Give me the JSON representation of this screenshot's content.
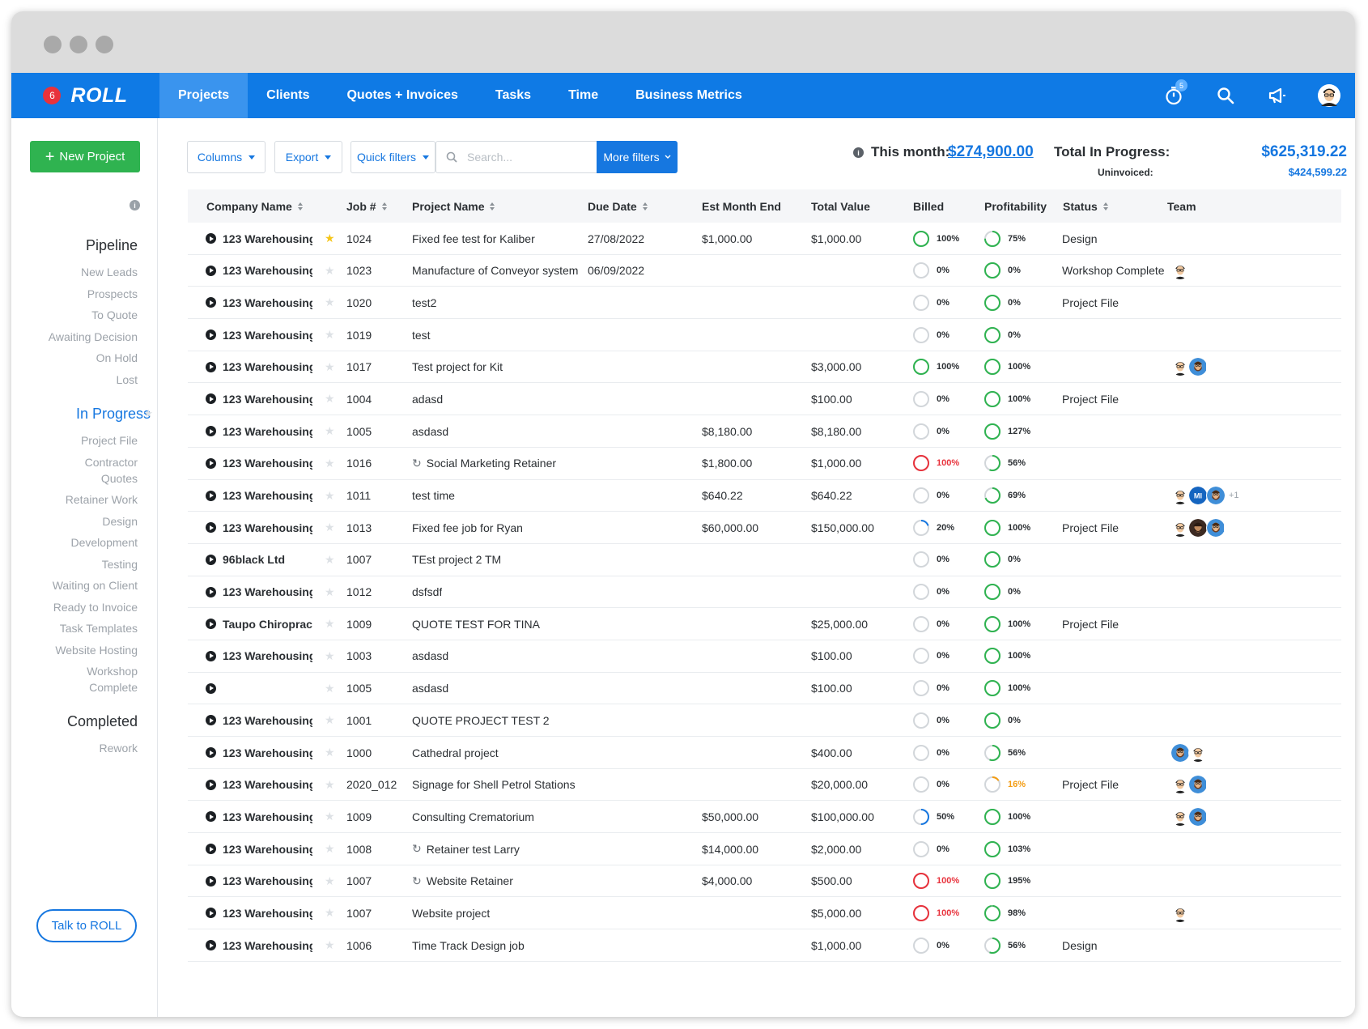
{
  "app": {
    "notification_count": "6",
    "logo_text": "ROLL",
    "timer_badge": "5"
  },
  "nav": {
    "tabs": [
      {
        "label": "Projects",
        "active": true
      },
      {
        "label": "Clients",
        "active": false
      },
      {
        "label": "Quotes + Invoices",
        "active": false
      },
      {
        "label": "Tasks",
        "active": false
      },
      {
        "label": "Time",
        "active": false
      },
      {
        "label": "Business Metrics",
        "active": false
      }
    ],
    "icons": [
      "stopwatch-icon",
      "search-icon",
      "megaphone-icon",
      "user-avatar"
    ]
  },
  "sidebar": {
    "new_project_label": "New Project",
    "groups": [
      {
        "title": "Pipeline",
        "highlight": false,
        "items": [
          "New Leads",
          "Prospects",
          "To Quote",
          "Awaiting Decision",
          "On Hold",
          "Lost"
        ]
      },
      {
        "title": "In Progress",
        "highlight": true,
        "items": [
          "Project File",
          "Contractor Quotes",
          "Retainer Work",
          "Design",
          "Development",
          "Testing",
          "Waiting on Client",
          "Ready to Invoice",
          "Task Templates",
          "Website Hosting",
          "Workshop Complete"
        ]
      },
      {
        "title": "Completed",
        "highlight": false,
        "items": [
          "Rework"
        ]
      }
    ],
    "talk_label": "Talk to ROLL"
  },
  "toolbar": {
    "columns_label": "Columns",
    "export_label": "Export",
    "quick_filters_label": "Quick filters",
    "search_placeholder": "Search...",
    "more_filters_label": "More filters"
  },
  "summary": {
    "this_month_label": "This month:",
    "this_month_value": "$274,900.00",
    "total_label": "Total In Progress:",
    "total_value": "$625,319.22",
    "uninvoiced_label": "Uninvoiced:",
    "uninvoiced_value": "$424,599.22"
  },
  "table": {
    "headers": {
      "company": "Company Name",
      "job": "Job #",
      "project": "Project Name",
      "due": "Due Date",
      "est": "Est Month End",
      "total": "Total Value",
      "billed": "Billed",
      "profit": "Profitability",
      "status": "Status",
      "team": "Team"
    },
    "rows": [
      {
        "company": "123 Warehousing",
        "starred": true,
        "job": "1024",
        "project": "Fixed fee test for Kaliber",
        "recurring": false,
        "due": "27/08/2022",
        "est": "$1,000.00",
        "total": "$1,000.00",
        "billed": "100%",
        "billed_pct": 100,
        "billed_color": "#2fb350",
        "profit": "75%",
        "profit_pct": 75,
        "profit_color": "#2fb350",
        "status": "Design",
        "team": [],
        "team_extra": ""
      },
      {
        "company": "123 Warehousing",
        "starred": false,
        "job": "1023",
        "project": "Manufacture of Conveyor system",
        "recurring": false,
        "due": "06/09/2022",
        "est": "",
        "total": "",
        "billed": "0%",
        "billed_pct": 0,
        "billed_color": "#d2d6da",
        "profit": "0%",
        "profit_pct": 100,
        "profit_color": "#2fb350",
        "status": "Workshop Complete",
        "team": [
          "a"
        ],
        "team_extra": ""
      },
      {
        "company": "123 Warehousing",
        "starred": false,
        "job": "1020",
        "project": "test2",
        "recurring": false,
        "due": "",
        "est": "",
        "total": "",
        "billed": "0%",
        "billed_pct": 0,
        "billed_color": "#d2d6da",
        "profit": "0%",
        "profit_pct": 100,
        "profit_color": "#2fb350",
        "status": "Project File",
        "team": [],
        "team_extra": ""
      },
      {
        "company": "123 Warehousing",
        "starred": false,
        "job": "1019",
        "project": "test",
        "recurring": false,
        "due": "",
        "est": "",
        "total": "",
        "billed": "0%",
        "billed_pct": 0,
        "billed_color": "#d2d6da",
        "profit": "0%",
        "profit_pct": 100,
        "profit_color": "#2fb350",
        "status": "",
        "team": [],
        "team_extra": ""
      },
      {
        "company": "123 Warehousing",
        "starred": false,
        "job": "1017",
        "project": "Test project for Kit",
        "recurring": false,
        "due": "",
        "est": "",
        "total": "$3,000.00",
        "billed": "100%",
        "billed_pct": 100,
        "billed_color": "#2fb350",
        "profit": "100%",
        "profit_pct": 100,
        "profit_color": "#2fb350",
        "status": "",
        "team": [
          "a",
          "b"
        ],
        "team_extra": ""
      },
      {
        "company": "123 Warehousing",
        "starred": false,
        "job": "1004",
        "project": "adasd",
        "recurring": false,
        "due": "",
        "est": "",
        "total": "$100.00",
        "billed": "0%",
        "billed_pct": 0,
        "billed_color": "#d2d6da",
        "profit": "100%",
        "profit_pct": 100,
        "profit_color": "#2fb350",
        "status": "Project File",
        "team": [],
        "team_extra": ""
      },
      {
        "company": "123 Warehousing",
        "starred": false,
        "job": "1005",
        "project": "asdasd",
        "recurring": false,
        "due": "",
        "est": "$8,180.00",
        "total": "$8,180.00",
        "billed": "0%",
        "billed_pct": 0,
        "billed_color": "#d2d6da",
        "profit": "127%",
        "profit_pct": 100,
        "profit_color": "#2fb350",
        "status": "",
        "team": [],
        "team_extra": ""
      },
      {
        "company": "123 Warehousing",
        "starred": false,
        "job": "1016",
        "project": "Social Marketing Retainer",
        "recurring": true,
        "due": "",
        "est": "$1,800.00",
        "total": "$1,000.00",
        "billed": "100%",
        "billed_pct": 100,
        "billed_color": "#e8323c",
        "profit": "56%",
        "profit_pct": 56,
        "profit_color": "#2fb350",
        "status": "",
        "team": [],
        "team_extra": ""
      },
      {
        "company": "123 Warehousing",
        "starred": false,
        "job": "1011",
        "project": "test time",
        "recurring": false,
        "due": "",
        "est": "$640.22",
        "total": "$640.22",
        "billed": "0%",
        "billed_pct": 0,
        "billed_color": "#d2d6da",
        "profit": "69%",
        "profit_pct": 69,
        "profit_color": "#2fb350",
        "status": "",
        "team": [
          "a",
          "MI",
          "b"
        ],
        "team_extra": "+1"
      },
      {
        "company": "123 Warehousing",
        "starred": false,
        "job": "1013",
        "project": "Fixed fee job for Ryan",
        "recurring": false,
        "due": "",
        "est": "$60,000.00",
        "total": "$150,000.00",
        "billed": "20%",
        "billed_pct": 20,
        "billed_color": "#1677e0",
        "profit": "100%",
        "profit_pct": 100,
        "profit_color": "#2fb350",
        "status": "Project File",
        "team": [
          "a",
          "c",
          "b"
        ],
        "team_extra": ""
      },
      {
        "company": "96black Ltd",
        "starred": false,
        "job": "1007",
        "project": "TEst project 2 TM",
        "recurring": false,
        "due": "",
        "est": "",
        "total": "",
        "billed": "0%",
        "billed_pct": 0,
        "billed_color": "#d2d6da",
        "profit": "0%",
        "profit_pct": 100,
        "profit_color": "#2fb350",
        "status": "",
        "team": [],
        "team_extra": ""
      },
      {
        "company": "123 Warehousing",
        "starred": false,
        "job": "1012",
        "project": "dsfsdf",
        "recurring": false,
        "due": "",
        "est": "",
        "total": "",
        "billed": "0%",
        "billed_pct": 0,
        "billed_color": "#d2d6da",
        "profit": "0%",
        "profit_pct": 100,
        "profit_color": "#2fb350",
        "status": "",
        "team": [],
        "team_extra": ""
      },
      {
        "company": "Taupo Chiropractor",
        "starred": false,
        "job": "1009",
        "project": "QUOTE TEST FOR TINA",
        "recurring": false,
        "due": "",
        "est": "",
        "total": "$25,000.00",
        "billed": "0%",
        "billed_pct": 0,
        "billed_color": "#d2d6da",
        "profit": "100%",
        "profit_pct": 100,
        "profit_color": "#2fb350",
        "status": "Project File",
        "team": [],
        "team_extra": ""
      },
      {
        "company": "123 Warehousing",
        "starred": false,
        "job": "1003",
        "project": "asdasd",
        "recurring": false,
        "due": "",
        "est": "",
        "total": "$100.00",
        "billed": "0%",
        "billed_pct": 0,
        "billed_color": "#d2d6da",
        "profit": "100%",
        "profit_pct": 100,
        "profit_color": "#2fb350",
        "status": "",
        "team": [],
        "team_extra": ""
      },
      {
        "company": "",
        "starred": false,
        "job": "1005",
        "project": "asdasd",
        "recurring": false,
        "due": "",
        "est": "",
        "total": "$100.00",
        "billed": "0%",
        "billed_pct": 0,
        "billed_color": "#d2d6da",
        "profit": "100%",
        "profit_pct": 100,
        "profit_color": "#2fb350",
        "status": "",
        "team": [],
        "team_extra": ""
      },
      {
        "company": "123 Warehousing",
        "starred": false,
        "job": "1001",
        "project": "QUOTE PROJECT TEST 2",
        "recurring": false,
        "due": "",
        "est": "",
        "total": "",
        "billed": "0%",
        "billed_pct": 0,
        "billed_color": "#d2d6da",
        "profit": "0%",
        "profit_pct": 100,
        "profit_color": "#2fb350",
        "status": "",
        "team": [],
        "team_extra": ""
      },
      {
        "company": "123 Warehousing",
        "starred": false,
        "job": "1000",
        "project": "Cathedral project",
        "recurring": false,
        "due": "",
        "est": "",
        "total": "$400.00",
        "billed": "0%",
        "billed_pct": 0,
        "billed_color": "#d2d6da",
        "profit": "56%",
        "profit_pct": 56,
        "profit_color": "#2fb350",
        "status": "",
        "team": [
          "b",
          "a"
        ],
        "team_extra": ""
      },
      {
        "company": "123 Warehousing",
        "starred": false,
        "job": "2020_012",
        "project": "Signage for Shell Petrol Stations",
        "recurring": false,
        "due": "",
        "est": "",
        "total": "$20,000.00",
        "billed": "0%",
        "billed_pct": 0,
        "billed_color": "#d2d6da",
        "profit": "16%",
        "profit_pct": 16,
        "profit_color": "#f39c12",
        "status": "Project File",
        "team": [
          "a",
          "b"
        ],
        "team_extra": ""
      },
      {
        "company": "123 Warehousing",
        "starred": false,
        "job": "1009",
        "project": "Consulting Crematorium",
        "recurring": false,
        "due": "",
        "est": "$50,000.00",
        "total": "$100,000.00",
        "billed": "50%",
        "billed_pct": 50,
        "billed_color": "#1677e0",
        "profit": "100%",
        "profit_pct": 100,
        "profit_color": "#2fb350",
        "status": "",
        "team": [
          "a",
          "b"
        ],
        "team_extra": ""
      },
      {
        "company": "123 Warehousing",
        "starred": false,
        "job": "1008",
        "project": "Retainer test Larry",
        "recurring": true,
        "due": "",
        "est": "$14,000.00",
        "total": "$2,000.00",
        "billed": "0%",
        "billed_pct": 0,
        "billed_color": "#d2d6da",
        "profit": "103%",
        "profit_pct": 100,
        "profit_color": "#2fb350",
        "status": "",
        "team": [],
        "team_extra": ""
      },
      {
        "company": "123 Warehousing",
        "starred": false,
        "job": "1007",
        "project": "Website Retainer",
        "recurring": true,
        "due": "",
        "est": "$4,000.00",
        "total": "$500.00",
        "billed": "100%",
        "billed_pct": 100,
        "billed_color": "#e8323c",
        "profit": "195%",
        "profit_pct": 100,
        "profit_color": "#2fb350",
        "status": "",
        "team": [],
        "team_extra": ""
      },
      {
        "company": "123 Warehousing",
        "starred": false,
        "job": "1007",
        "project": "Website project",
        "recurring": false,
        "due": "",
        "est": "",
        "total": "$5,000.00",
        "billed": "100%",
        "billed_pct": 100,
        "billed_color": "#e8323c",
        "profit": "98%",
        "profit_pct": 98,
        "profit_color": "#2fb350",
        "status": "",
        "team": [
          "a"
        ],
        "team_extra": ""
      },
      {
        "company": "123 Warehousing",
        "starred": false,
        "job": "1006",
        "project": "Time Track Design job",
        "recurring": false,
        "due": "",
        "est": "",
        "total": "$1,000.00",
        "billed": "0%",
        "billed_pct": 0,
        "billed_color": "#d2d6da",
        "profit": "56%",
        "profit_pct": 56,
        "profit_color": "#2fb350",
        "status": "Design",
        "team": [],
        "team_extra": ""
      }
    ]
  }
}
